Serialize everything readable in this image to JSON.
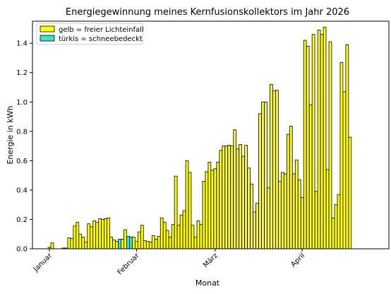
{
  "chart_data": {
    "type": "bar",
    "title": "Energiegewinnung meines Kernfusionskollektors im Jahr 2026",
    "xlabel": "Monat",
    "ylabel": "Energie in kWh",
    "ylim": [
      0,
      1.55
    ],
    "yticks": [
      "0.0",
      "0.2",
      "0.4",
      "0.6",
      "0.8",
      "1.0",
      "1.2",
      "1.4"
    ],
    "xticks": [
      {
        "label": "Januar",
        "day": 1
      },
      {
        "label": "Februar",
        "day": 32
      },
      {
        "label": "März",
        "day": 60
      },
      {
        "label": "April",
        "day": 91
      }
    ],
    "grid": false,
    "legend_position": "top-left",
    "colors": {
      "free": "#ffff00",
      "snow": "#40e0d0",
      "edge": "#000000"
    },
    "series": [
      {
        "name": "gelb = freier Lichteinfall",
        "color": "#ffff00",
        "values": [
          0.01,
          0.04,
          0,
          0,
          0,
          0.005,
          0.005,
          0.075,
          0.07,
          0.155,
          0.18,
          0.1,
          0.08,
          0.045,
          0.17,
          0.15,
          0.19,
          0.18,
          0.205,
          0.2,
          0.205,
          0.21,
          0.08,
          0.06,
          0.05,
          0.015,
          0.065,
          0.13,
          0.07,
          0,
          0.08,
          0.05,
          0.115,
          0.16,
          0.055,
          0.05,
          0.045,
          0.09,
          0.065,
          0.085,
          0.21,
          0.18,
          0.125,
          0.08,
          0.165,
          0.495,
          0.16,
          0.23,
          0.26,
          0.6,
          0.52,
          0.16,
          0.08,
          0.19,
          0.165,
          0.46,
          0.525,
          0.59,
          0.535,
          0.545,
          0.59,
          0.67,
          0.7,
          0.7,
          0.705,
          0.7,
          0.81,
          0.68,
          0.71,
          0.63,
          0.705,
          0.55,
          0.44,
          0.25,
          0.31,
          0.92,
          1.0,
          1.0,
          0.415,
          1.12,
          1.075,
          1.08,
          0.46,
          0.52,
          0.51,
          0.78,
          0.835,
          0.51,
          0.605,
          0.47,
          0.35,
          1.42,
          1.38,
          0.98,
          1.46,
          0.39,
          1.49,
          1.46,
          1.51,
          0.54,
          1.41,
          0.21,
          0.3,
          0.37,
          1.27,
          1.07,
          1.39,
          0.76
        ]
      },
      {
        "name": "türkis = schneebedeckt",
        "color": "#40e0d0",
        "values": [
          0,
          0,
          0,
          0,
          0,
          0,
          0,
          0,
          0,
          0,
          0,
          0,
          0,
          0,
          0,
          0,
          0,
          0,
          0,
          0,
          0,
          0,
          0,
          0,
          0,
          0.065,
          0,
          0,
          0.085,
          0.08,
          0,
          0,
          0,
          0,
          0,
          0,
          0,
          0,
          0,
          0,
          0,
          0,
          0,
          0,
          0,
          0,
          0,
          0,
          0,
          0,
          0,
          0,
          0,
          0,
          0,
          0,
          0,
          0,
          0,
          0,
          0,
          0,
          0,
          0,
          0,
          0,
          0,
          0,
          0,
          0,
          0,
          0,
          0,
          0,
          0,
          0,
          0,
          0,
          0,
          0,
          0,
          0,
          0,
          0,
          0,
          0,
          0,
          0,
          0,
          0,
          0,
          0,
          0,
          0,
          0,
          0,
          0,
          0,
          0,
          0,
          0,
          0,
          0,
          0,
          0,
          0,
          0,
          0,
          0,
          0
        ]
      }
    ]
  }
}
